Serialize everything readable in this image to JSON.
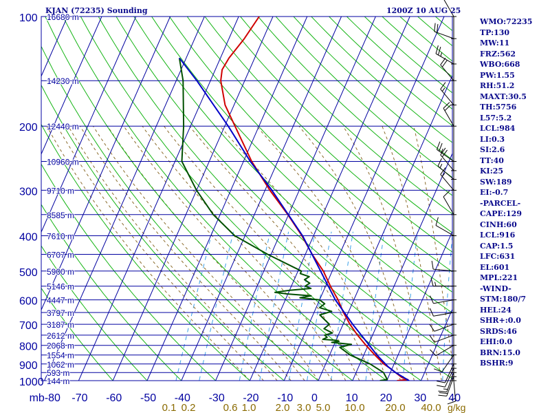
{
  "header": {
    "station_title": "KJAN (72235) Sounding",
    "time_label": "1200Z 10 AUG 25"
  },
  "indices": [
    "WMO:72235",
    "TP:130",
    "MW:11",
    "FRZ:562",
    "WBO:668",
    "PW:1.55",
    "RH:51.2",
    "MAXT:30.5",
    "TH:5756",
    "L57:5.2",
    "LCL:984",
    "LI:0.3",
    "SI:2.6",
    "TT:40",
    "KI:25",
    "SW:189",
    "EI:-0.7",
    "-PARCEL-",
    "CAPE:129",
    "CINH:60",
    "LCL:916",
    "CAP:1.5",
    "LFC:631",
    "EL:601",
    "MPL:221",
    "-WIND-",
    "STM:180/7",
    "HEL:24",
    "SHR+:0.0",
    "SRDS:46",
    "EHI:0.0",
    "BRN:15.0",
    "BSHR:9"
  ],
  "colors": {
    "isobar_isotherm": "#0000a0",
    "dry_adiabat": "#14b414",
    "moist_adiabat": "#8a6a2a",
    "mixing_ratio": "#3aa0e6",
    "temperature": "#d00000",
    "dewpoint": "#005000",
    "parcel": "#0000c8",
    "wind_barb": "#000000",
    "mixing_ratio_label": "#8a6a00"
  },
  "chart_data": {
    "type": "line",
    "skew_t": true,
    "y_scale": "log",
    "ylim": [
      1000,
      100
    ],
    "xlim": [
      -80,
      40
    ],
    "pressure_ticks": [
      100,
      200,
      300,
      400,
      500,
      600,
      700,
      800,
      900,
      1000
    ],
    "x_ticks": [
      -80,
      -70,
      -60,
      -50,
      -40,
      -30,
      -20,
      -10,
      0,
      10,
      20,
      30,
      40
    ],
    "x_tick_labels": [
      "mb-80",
      "-70",
      "-60",
      "-50",
      "-40",
      "-30",
      "-20",
      "-10",
      "0",
      "10",
      "20",
      "30",
      "40"
    ],
    "height_labels": [
      {
        "p": 100,
        "label": "16680 m"
      },
      {
        "p": 150,
        "label": "14230 m"
      },
      {
        "p": 200,
        "label": "12440 m"
      },
      {
        "p": 250,
        "label": "10960 m"
      },
      {
        "p": 300,
        "label": "9710 m"
      },
      {
        "p": 350,
        "label": "8585 m"
      },
      {
        "p": 400,
        "label": "7610 m"
      },
      {
        "p": 450,
        "label": "6707 m"
      },
      {
        "p": 500,
        "label": "5900 m"
      },
      {
        "p": 550,
        "label": "5146 m"
      },
      {
        "p": 600,
        "label": "4447 m"
      },
      {
        "p": 650,
        "label": "3797 m"
      },
      {
        "p": 700,
        "label": "3187 m"
      },
      {
        "p": 750,
        "label": "2612 m"
      },
      {
        "p": 800,
        "label": "2068 m"
      },
      {
        "p": 850,
        "label": "1554 m"
      },
      {
        "p": 900,
        "label": "1062 m"
      },
      {
        "p": 950,
        "label": "593 m"
      },
      {
        "p": 1000,
        "label": "144 m"
      }
    ],
    "mixing_ratio_labels": [
      "0.1",
      "0.2",
      "0.6",
      "1.0",
      "2.0",
      "3.0",
      "5.0",
      "10.0",
      "20.0",
      "40.0"
    ],
    "mixing_ratio_unit": "g/kg",
    "series": [
      {
        "name": "temperature",
        "points": [
          [
            1000,
            23.0
          ],
          [
            993,
            26.0
          ],
          [
            980,
            24.0
          ],
          [
            950,
            21.5
          ],
          [
            925,
            19.4
          ],
          [
            900,
            17.0
          ],
          [
            850,
            13.2
          ],
          [
            800,
            9.4
          ],
          [
            750,
            5.6
          ],
          [
            700,
            2.0
          ],
          [
            650,
            -1.4
          ],
          [
            600,
            -4.6
          ],
          [
            550,
            -8.6
          ],
          [
            500,
            -12.6
          ],
          [
            450,
            -18.0
          ],
          [
            400,
            -23.4
          ],
          [
            350,
            -30.2
          ],
          [
            300,
            -38.6
          ],
          [
            250,
            -47.6
          ],
          [
            200,
            -57.0
          ],
          [
            175,
            -62.6
          ],
          [
            150,
            -67.0
          ],
          [
            140,
            -68.0
          ],
          [
            130,
            -67.5
          ],
          [
            115,
            -65.5
          ],
          [
            100,
            -64.0
          ]
        ]
      },
      {
        "name": "dewpoint",
        "points": [
          [
            1000,
            18.0
          ],
          [
            993,
            20.0
          ],
          [
            950,
            18.0
          ],
          [
            900,
            13.0
          ],
          [
            850,
            6.0
          ],
          [
            810,
            2.0
          ],
          [
            795,
            5.0
          ],
          [
            785,
            -1.0
          ],
          [
            780,
            1.0
          ],
          [
            775,
            0.0
          ],
          [
            770,
            -4.0
          ],
          [
            760,
            -3.0
          ],
          [
            750,
            -4.0
          ],
          [
            740,
            -2.0
          ],
          [
            720,
            -5.0
          ],
          [
            700,
            -4.0
          ],
          [
            680,
            -6.0
          ],
          [
            660,
            -8.0
          ],
          [
            645,
            -5.0
          ],
          [
            630,
            -9.0
          ],
          [
            615,
            -8.0
          ],
          [
            600,
            -10.0
          ],
          [
            592,
            -16.0
          ],
          [
            585,
            -13.0
          ],
          [
            578,
            -20.0
          ],
          [
            572,
            -24.0
          ],
          [
            565,
            -20.0
          ],
          [
            558,
            -14.0
          ],
          [
            550,
            -16.0
          ],
          [
            540,
            -15.0
          ],
          [
            528,
            -17.0
          ],
          [
            518,
            -16.0
          ],
          [
            508,
            -19.0
          ],
          [
            500,
            -19.0
          ],
          [
            450,
            -31.0
          ],
          [
            400,
            -43.0
          ],
          [
            350,
            -52.0
          ],
          [
            300,
            -60.0
          ],
          [
            250,
            -68.0
          ],
          [
            200,
            -72.0
          ],
          [
            150,
            -78.0
          ],
          [
            130,
            -82.0
          ]
        ]
      },
      {
        "name": "parcel",
        "points": [
          [
            1000,
            26.5
          ],
          [
            950,
            21.5
          ],
          [
            916,
            18.6
          ],
          [
            850,
            13.8
          ],
          [
            800,
            10.4
          ],
          [
            700,
            2.8
          ],
          [
            600,
            -5.4
          ],
          [
            500,
            -13.4
          ],
          [
            400,
            -23.2
          ],
          [
            300,
            -38.0
          ],
          [
            250,
            -48.0
          ],
          [
            200,
            -59.0
          ],
          [
            150,
            -74.0
          ],
          [
            130,
            -82.0
          ]
        ]
      }
    ],
    "wind_barbs": [
      {
        "p": 1000,
        "dir": 175,
        "kt": 15
      },
      {
        "p": 975,
        "dir": 200,
        "kt": 20
      },
      {
        "p": 950,
        "dir": 200,
        "kt": 15
      },
      {
        "p": 925,
        "dir": 205,
        "kt": 10
      },
      {
        "p": 900,
        "dir": 205,
        "kt": 10
      },
      {
        "p": 850,
        "dir": 215,
        "kt": 10
      },
      {
        "p": 800,
        "dir": 240,
        "kt": 10
      },
      {
        "p": 750,
        "dir": 250,
        "kt": 10
      },
      {
        "p": 700,
        "dir": 250,
        "kt": 10
      },
      {
        "p": 650,
        "dir": 260,
        "kt": 10
      },
      {
        "p": 600,
        "dir": 260,
        "kt": 10
      },
      {
        "p": 550,
        "dir": 270,
        "kt": 15
      },
      {
        "p": 500,
        "dir": 275,
        "kt": 10
      },
      {
        "p": 400,
        "dir": 300,
        "kt": 10
      },
      {
        "p": 350,
        "dir": 330,
        "kt": 10
      },
      {
        "p": 300,
        "dir": 320,
        "kt": 15
      },
      {
        "p": 280,
        "dir": 310,
        "kt": 15
      },
      {
        "p": 265,
        "dir": 320,
        "kt": 20
      },
      {
        "p": 250,
        "dir": 305,
        "kt": 25
      },
      {
        "p": 200,
        "dir": 330,
        "kt": 20
      },
      {
        "p": 175,
        "dir": 320,
        "kt": 15
      },
      {
        "p": 150,
        "dir": 320,
        "kt": 20
      },
      {
        "p": 135,
        "dir": 300,
        "kt": 25
      },
      {
        "p": 115,
        "dir": 290,
        "kt": 20
      },
      {
        "p": 100,
        "dir": 330,
        "kt": 10
      }
    ]
  }
}
